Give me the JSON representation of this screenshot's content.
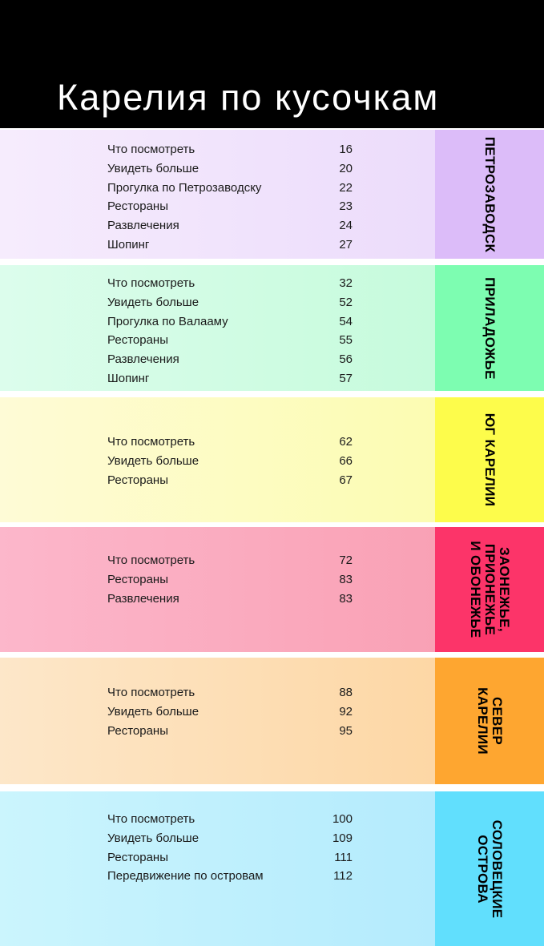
{
  "title": "Карелия по кусочкам",
  "sections": [
    {
      "name": "ПЕТРОЗАВОДСК",
      "color": "#dcbcf9",
      "items": [
        {
          "label": "Что посмотреть",
          "page": "16"
        },
        {
          "label": "Увидеть больше",
          "page": "20"
        },
        {
          "label": "Прогулка по Петрозаводску",
          "page": "22"
        },
        {
          "label": "Рестораны",
          "page": "23"
        },
        {
          "label": "Развлечения",
          "page": "24"
        },
        {
          "label": "Шопинг",
          "page": "27"
        }
      ]
    },
    {
      "name": "ПРИЛАДОЖЬЕ",
      "color": "#7dfdb1",
      "items": [
        {
          "label": "Что посмотреть",
          "page": "32"
        },
        {
          "label": "Увидеть больше",
          "page": "52"
        },
        {
          "label": "Прогулка по Валааму",
          "page": "54"
        },
        {
          "label": "Рестораны",
          "page": "55"
        },
        {
          "label": "Развлечения",
          "page": "56"
        },
        {
          "label": "Шопинг",
          "page": "57"
        }
      ]
    },
    {
      "name": "ЮГ КАРЕЛИИ",
      "color": "#fdfc4b",
      "items": [
        {
          "label": "Что посмотреть",
          "page": "62"
        },
        {
          "label": "Увидеть больше",
          "page": "66"
        },
        {
          "label": "Рестораны",
          "page": "67"
        }
      ]
    },
    {
      "name": "ЗАОНЕЖЬЕ,\nПРИОНЕЖЬЕ\nИ ОБОНЕЖЬЕ",
      "color": "#fc3469",
      "items": [
        {
          "label": "Что посмотреть",
          "page": "72"
        },
        {
          "label": "Рестораны",
          "page": "83"
        },
        {
          "label": "Развлечения",
          "page": "83"
        }
      ]
    },
    {
      "name": "СЕВЕР\nКАРЕЛИИ",
      "color": "#fea630",
      "items": [
        {
          "label": "Что посмотреть",
          "page": "88"
        },
        {
          "label": "Увидеть больше",
          "page": "92"
        },
        {
          "label": "Рестораны",
          "page": "95"
        }
      ]
    },
    {
      "name": "СОЛОВЕЦКИЕ\nОСТРОВА",
      "color": "#61dffd",
      "items": [
        {
          "label": "Что посмотреть",
          "page": "100"
        },
        {
          "label": "Увидеть больше",
          "page": "109"
        },
        {
          "label": "Рестораны",
          "page": "111"
        },
        {
          "label": "Передвижение по островам",
          "page": "112"
        }
      ]
    }
  ]
}
